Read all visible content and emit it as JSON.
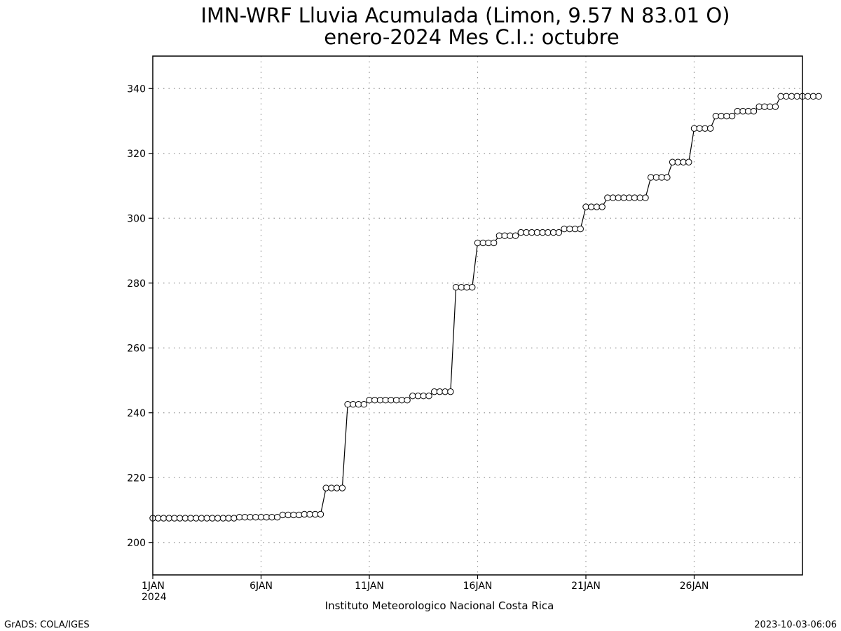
{
  "chart_data": {
    "type": "line",
    "title": "IMN-WRF  Lluvia Acumulada  (Limon, 9.57  N 83.01  O)",
    "subtitle": "enero-2024 Mes C.I.: octubre",
    "xlabel": "",
    "ylabel": "",
    "credit": "Instituto Meteorologico Nacional Costa Rica",
    "xlim": [
      "2024-01-01 00:00",
      "2024-01-31 00:00"
    ],
    "ylim": [
      190,
      350
    ],
    "grid": true,
    "x_ticks": [
      {
        "value": "2024-01-01",
        "label": "1JAN",
        "sublabel": "2024"
      },
      {
        "value": "2024-01-06",
        "label": "6JAN"
      },
      {
        "value": "2024-01-11",
        "label": "11JAN"
      },
      {
        "value": "2024-01-16",
        "label": "16JAN"
      },
      {
        "value": "2024-01-21",
        "label": "21JAN"
      },
      {
        "value": "2024-01-26",
        "label": "26JAN"
      }
    ],
    "y_ticks": [
      200,
      220,
      240,
      260,
      280,
      300,
      320,
      340
    ],
    "x_step_hours": 6,
    "x_start": "2024-01-01 00:00",
    "series": [
      {
        "marker": "open-circle",
        "values": [
          207.5,
          207.5,
          207.5,
          207.5,
          207.5,
          207.5,
          207.5,
          207.5,
          207.5,
          207.5,
          207.5,
          207.5,
          207.5,
          207.5,
          207.5,
          207.5,
          207.8,
          207.8,
          207.8,
          207.8,
          207.8,
          207.8,
          207.8,
          207.8,
          208.5,
          208.5,
          208.5,
          208.5,
          208.7,
          208.7,
          208.7,
          208.7,
          216.8,
          216.8,
          216.8,
          216.8,
          242.6,
          242.6,
          242.6,
          242.6,
          243.9,
          243.9,
          243.9,
          243.9,
          243.9,
          243.9,
          243.9,
          243.9,
          245.2,
          245.2,
          245.2,
          245.2,
          246.5,
          246.5,
          246.5,
          246.5,
          278.7,
          278.7,
          278.7,
          278.7,
          292.4,
          292.4,
          292.4,
          292.4,
          294.6,
          294.6,
          294.6,
          294.6,
          295.6,
          295.6,
          295.6,
          295.6,
          295.6,
          295.6,
          295.6,
          295.6,
          296.7,
          296.7,
          296.7,
          296.7,
          303.5,
          303.5,
          303.5,
          303.5,
          306.3,
          306.3,
          306.3,
          306.3,
          306.3,
          306.3,
          306.3,
          306.3,
          312.6,
          312.6,
          312.6,
          312.6,
          317.3,
          317.3,
          317.3,
          317.3,
          327.7,
          327.7,
          327.7,
          327.7,
          331.5,
          331.5,
          331.5,
          331.5,
          333.0,
          333.0,
          333.0,
          333.0,
          334.4,
          334.4,
          334.4,
          334.4,
          337.6,
          337.6,
          337.6,
          337.6,
          337.6,
          337.6,
          337.6,
          337.6
        ]
      }
    ]
  },
  "footer": {
    "left": "GrADS: COLA/IGES",
    "right": "2023-10-03-06:06"
  }
}
